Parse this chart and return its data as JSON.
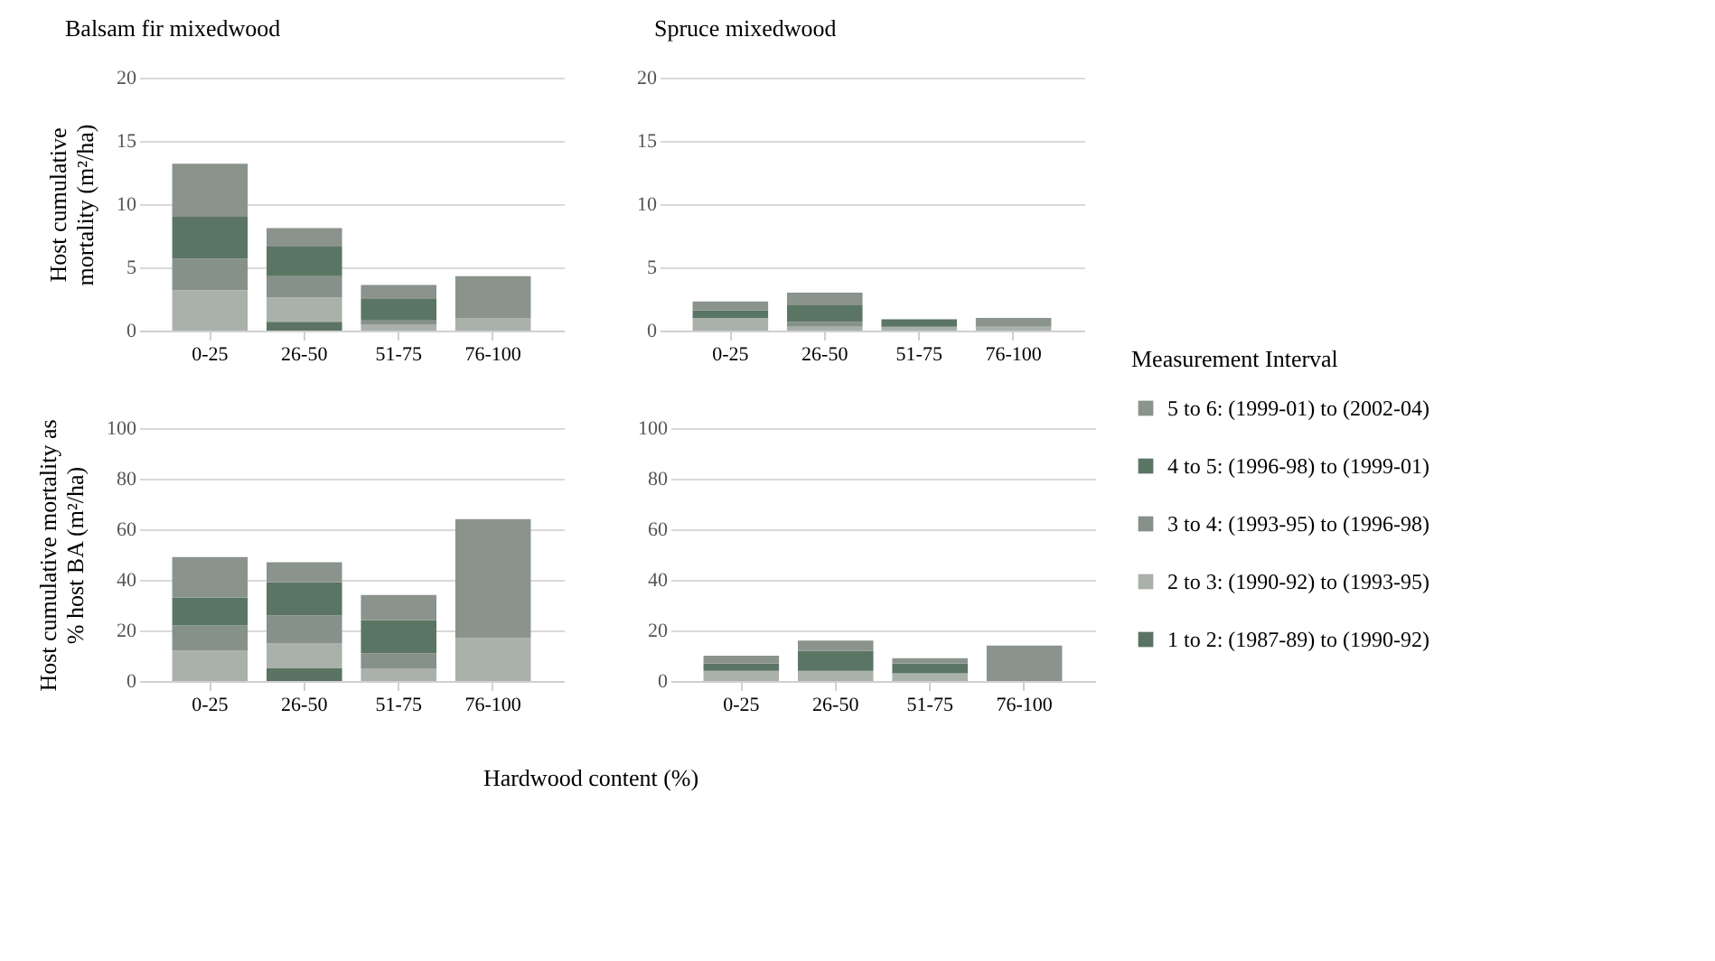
{
  "chart_data": [
    {
      "type": "bar",
      "title": "Balsam fir mixedwood",
      "ylabel": "Host cumulative mortality (m²/ha)",
      "categories": [
        "0-25",
        "26-50",
        "51-75",
        "76-100"
      ],
      "stacked": true,
      "ylim": [
        0,
        20
      ],
      "yticks": [
        0,
        5,
        10,
        15,
        20
      ],
      "grid": "y",
      "series": [
        {
          "color": "#5a7363",
          "values": [
            null,
            0.7,
            null,
            null
          ]
        },
        {
          "color": "#aab1ab",
          "values": [
            3.2,
            1.9,
            0.5,
            1.0
          ]
        },
        {
          "color": "#869189",
          "values": [
            2.5,
            1.7,
            0.3,
            null
          ]
        },
        {
          "color": "#5b7565",
          "values": [
            3.3,
            2.4,
            1.7,
            null
          ]
        },
        {
          "color": "#8b938d",
          "values": [
            4.2,
            1.4,
            1.1,
            3.3
          ]
        }
      ]
    },
    {
      "type": "bar",
      "title": "Spruce mixedwood",
      "categories": [
        "0-25",
        "26-50",
        "51-75",
        "76-100"
      ],
      "stacked": true,
      "ylim": [
        0,
        20
      ],
      "yticks": [
        0,
        5,
        10,
        15,
        20
      ],
      "grid": "y",
      "series": [
        {
          "color": "#5a7363",
          "values": [
            null,
            null,
            null,
            null
          ]
        },
        {
          "color": "#aab1ab",
          "values": [
            1.0,
            0.3,
            0.3,
            0.3
          ]
        },
        {
          "color": "#869189",
          "values": [
            null,
            0.4,
            null,
            null
          ]
        },
        {
          "color": "#5b7565",
          "values": [
            0.6,
            1.3,
            0.6,
            null
          ]
        },
        {
          "color": "#8b938d",
          "values": [
            0.7,
            1.0,
            null,
            0.7
          ]
        }
      ]
    },
    {
      "type": "bar",
      "ylabel": "Host cumulative mortality as % host BA (m²/ha)",
      "xlabel": "Hardwood content (%)",
      "categories": [
        "0-25",
        "26-50",
        "51-75",
        "76-100"
      ],
      "stacked": true,
      "ylim": [
        0,
        100
      ],
      "yticks": [
        0,
        20,
        40,
        60,
        80,
        100
      ],
      "grid": "y",
      "series": [
        {
          "color": "#5a7363",
          "values": [
            null,
            5,
            null,
            null
          ]
        },
        {
          "color": "#aab1ab",
          "values": [
            12,
            10,
            5,
            17
          ]
        },
        {
          "color": "#869189",
          "values": [
            10,
            11,
            6,
            null
          ]
        },
        {
          "color": "#5b7565",
          "values": [
            11,
            13,
            13,
            null
          ]
        },
        {
          "color": "#8b938d",
          "values": [
            16,
            8,
            10,
            47
          ]
        }
      ]
    },
    {
      "type": "bar",
      "categories": [
        "0-25",
        "26-50",
        "51-75",
        "76-100"
      ],
      "stacked": true,
      "ylim": [
        0,
        100
      ],
      "yticks": [
        0,
        20,
        40,
        60,
        80,
        100
      ],
      "grid": "y",
      "legend": "right",
      "legend_title": "Measurement Interval",
      "series": [
        {
          "name": "1 to 2: (1987-89) to (1990-92)",
          "color": "#5a7363",
          "values": [
            null,
            null,
            null,
            null
          ]
        },
        {
          "name": "2 to 3: (1990-92) to (1993-95)",
          "color": "#aab1ab",
          "values": [
            4,
            4,
            3,
            null
          ]
        },
        {
          "name": "3 to 4: (1993-95) to (1996-98)",
          "color": "#869189",
          "values": [
            null,
            null,
            null,
            null
          ]
        },
        {
          "name": "4 to 5: (1996-98) to (1999-01)",
          "color": "#5b7565",
          "values": [
            3,
            8,
            4,
            null
          ]
        },
        {
          "name": "5 to 6: (1999-01) to (2002-04)",
          "color": "#8b938d",
          "values": [
            3,
            4,
            2,
            14
          ]
        }
      ]
    }
  ]
}
